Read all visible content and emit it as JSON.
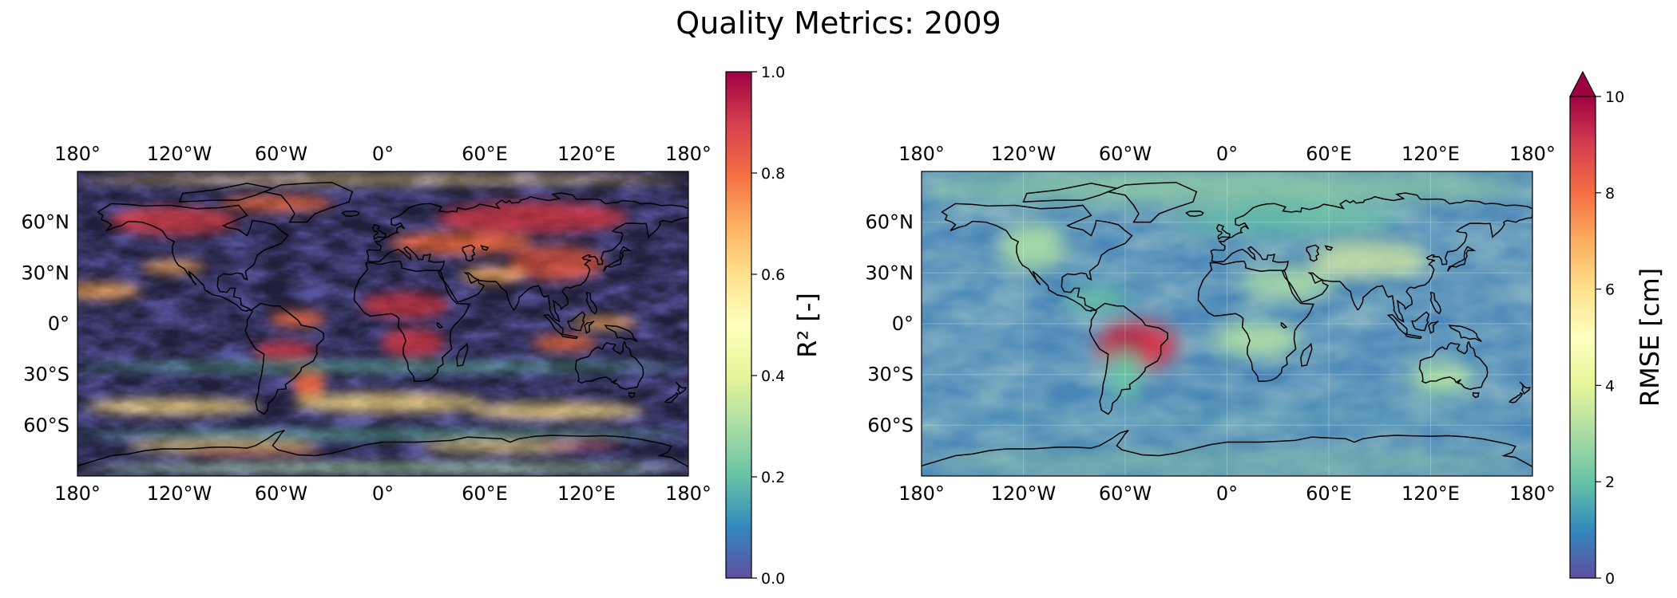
{
  "figure": {
    "title": "Quality Metrics: 2009"
  },
  "lon_ticks": [
    "180°",
    "120°W",
    "60°W",
    "0°",
    "60°E",
    "120°E",
    "180°"
  ],
  "lat_ticks": [
    "60°N",
    "30°N",
    "0°",
    "30°S",
    "60°S"
  ],
  "panels": [
    {
      "name": "r2",
      "colorbar": {
        "label": "R² [-]",
        "min": 0.0,
        "max": 1.0,
        "ticks": [
          "0.0",
          "0.2",
          "0.4",
          "0.6",
          "0.8",
          "1.0"
        ],
        "extend": "neither",
        "colormap": "Spectral_r",
        "colors": [
          "#5e4fa2",
          "#3288bd",
          "#66c2a5",
          "#abdda4",
          "#e6f598",
          "#ffffbf",
          "#fee08b",
          "#fdae61",
          "#f46d43",
          "#d53e4f",
          "#9e0142"
        ]
      }
    },
    {
      "name": "rmse",
      "colorbar": {
        "label": "RMSE [cm]",
        "min": 0,
        "max": 10,
        "ticks": [
          "0",
          "2",
          "4",
          "6",
          "8",
          "10"
        ],
        "extend": "max",
        "colormap": "Spectral_r",
        "colors": [
          "#5e4fa2",
          "#3288bd",
          "#66c2a5",
          "#abdda4",
          "#e6f598",
          "#ffffbf",
          "#fee08b",
          "#fdae61",
          "#f46d43",
          "#d53e4f",
          "#9e0142"
        ]
      }
    }
  ]
}
